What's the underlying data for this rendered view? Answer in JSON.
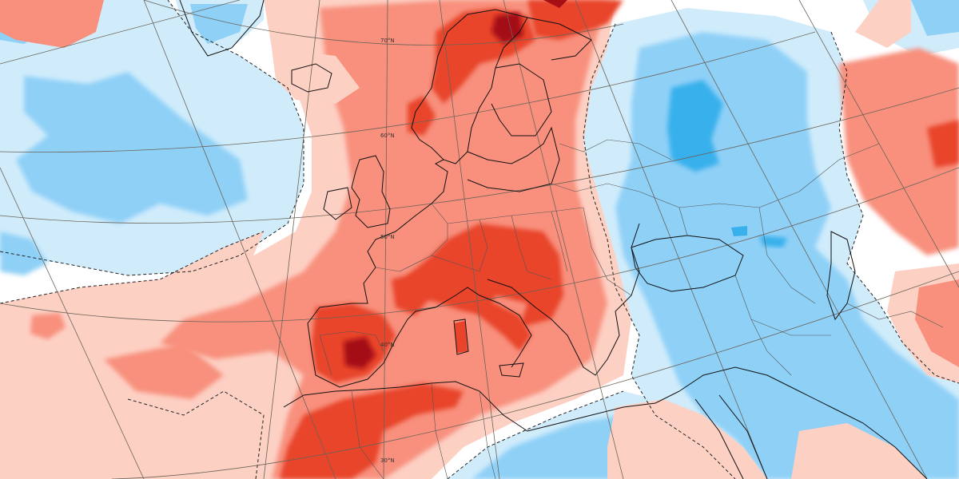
{
  "map": {
    "type": "temperature-anomaly",
    "projection": "polar-stereographic",
    "latitude_labels": [
      "70°N",
      "60°N",
      "50°N",
      "40°N",
      "30°N"
    ],
    "anomaly_colors": {
      "very_strong_warm": "#a50f15",
      "strong_warm": "#e8442c",
      "warm": "#f8907d",
      "slight_warm": "#fdd0c4",
      "neutral": "#ffffff",
      "slight_cold": "#d0ecfb",
      "cold": "#8fd0f7",
      "strong_cold": "#37b0ec"
    },
    "graticule_color": "#6b6358",
    "coastline_color": "#111111",
    "border_color": "#555555",
    "contour_style": "dashed"
  }
}
